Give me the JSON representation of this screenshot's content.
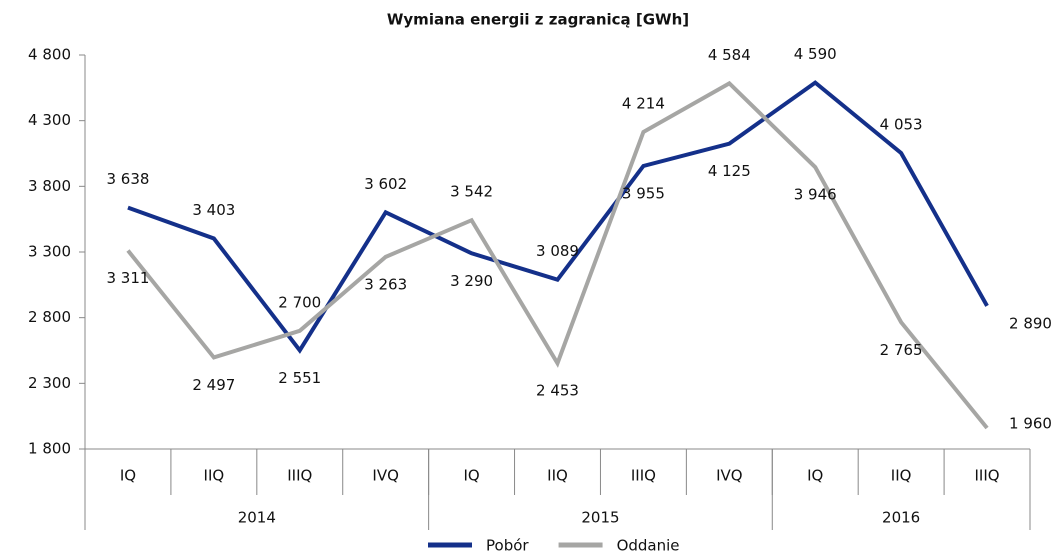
{
  "chart_data": {
    "type": "line",
    "title": "Wymiana energii z zagranicą [GWh]",
    "categories": [
      "IQ",
      "IIQ",
      "IIIQ",
      "IVQ",
      "IQ",
      "IIQ",
      "IIIQ",
      "IVQ",
      "IQ",
      "IIQ",
      "IIIQ"
    ],
    "years": [
      "2014",
      "2015",
      "2016"
    ],
    "series": [
      {
        "name": "Pobór",
        "color": "#14308a",
        "values": [
          3638,
          3403,
          2551,
          3602,
          3290,
          3089,
          3955,
          4125,
          4590,
          4053,
          2890
        ],
        "value_labels": [
          "3 638",
          "3 403",
          "2 551",
          "3 602",
          "3 290",
          "3 089",
          "3 955",
          "4 125",
          "4 590",
          "4 053",
          "2 890"
        ]
      },
      {
        "name": "Oddanie",
        "color": "#a6a6a4",
        "values": [
          3311,
          2497,
          2700,
          3263,
          3542,
          2453,
          4214,
          4584,
          3946,
          2765,
          1960
        ],
        "value_labels": [
          "3 311",
          "2 497",
          "2 700",
          "3 263",
          "3 542",
          "2 453",
          "4 214",
          "4 584",
          "3 946",
          "2 765",
          "1 960"
        ]
      }
    ],
    "ylim": [
      1800,
      4800
    ],
    "yticks": [
      {
        "value": 1800,
        "label": "1 800"
      },
      {
        "value": 2300,
        "label": "2 300"
      },
      {
        "value": 2800,
        "label": "2 800"
      },
      {
        "value": 3300,
        "label": "3 300"
      },
      {
        "value": 3800,
        "label": "3 800"
      },
      {
        "value": 4300,
        "label": "4 300"
      },
      {
        "value": 4800,
        "label": "4 800"
      }
    ],
    "legend": "bottom"
  }
}
